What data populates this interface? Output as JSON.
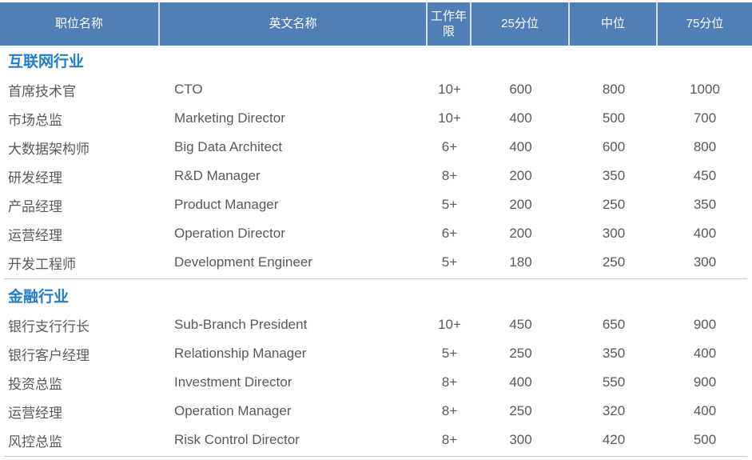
{
  "colors": {
    "header_bg": "#4E7FB6",
    "header_text": "#FFFFFF",
    "header_divider": "#D6E2F2",
    "section_title_text": "#1F7CD0",
    "body_text": "#58595B",
    "divider_line": "#C8C8C8"
  },
  "chart_data": {
    "type": "table",
    "columns": [
      "职位名称",
      "英文名称",
      "工作年限",
      "25分位",
      "中位",
      "75分位"
    ],
    "sections": [
      {
        "title": "互联网行业",
        "rows": [
          [
            "首席技术官",
            "CTO",
            "10+",
            "600",
            "800",
            "1000"
          ],
          [
            "市场总监",
            "Marketing Director",
            "10+",
            "400",
            "500",
            "700"
          ],
          [
            "大数据架构师",
            "Big Data Architect",
            "6+",
            "400",
            "600",
            "800"
          ],
          [
            "研发经理",
            "R&D Manager",
            "8+",
            "200",
            "350",
            "450"
          ],
          [
            "产品经理",
            "Product Manager",
            "5+",
            "200",
            "250",
            "350"
          ],
          [
            "运营经理",
            "Operation Director",
            "6+",
            "200",
            "300",
            "400"
          ],
          [
            "开发工程师",
            "Development Engineer",
            "5+",
            "180",
            "250",
            "300"
          ]
        ]
      },
      {
        "title": "金融行业",
        "rows": [
          [
            "银行支行行长",
            "Sub-Branch President",
            "10+",
            "450",
            "650",
            "900"
          ],
          [
            "银行客户经理",
            "Relationship Manager",
            "5+",
            "250",
            "350",
            "400"
          ],
          [
            "投资总监",
            "Investment Director",
            "8+",
            "400",
            "550",
            "900"
          ],
          [
            "运营经理",
            "Operation Manager",
            "8+",
            "250",
            "320",
            "400"
          ],
          [
            "风控总监",
            "Risk Control Director",
            "8+",
            "300",
            "420",
            "500"
          ]
        ]
      }
    ]
  }
}
